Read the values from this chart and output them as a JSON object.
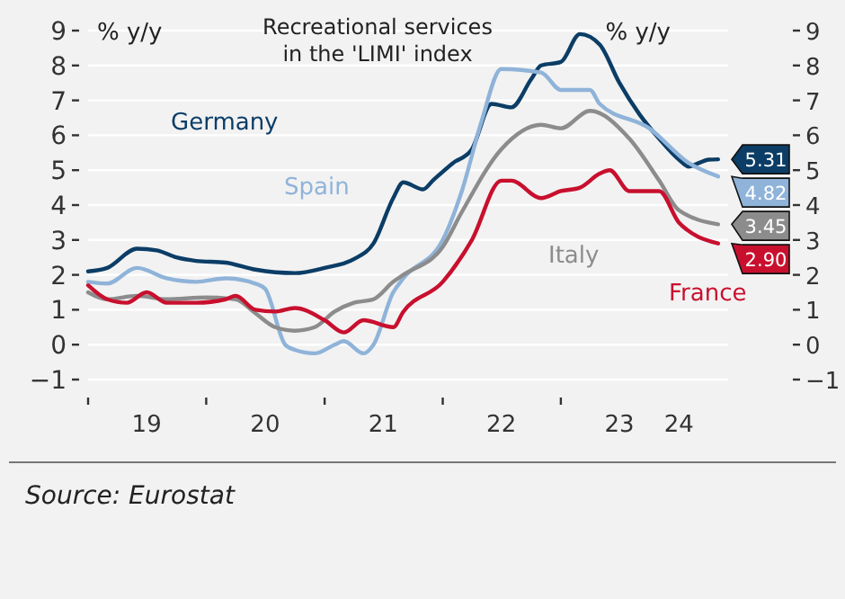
{
  "chart_data": {
    "type": "line",
    "title": "Recreational services\nin the 'LIMI' index",
    "ylabel": "% y/y",
    "y2label": "% y/y",
    "xlim": [
      "2019-01",
      "2024-06"
    ],
    "xticks": [
      {
        "value": "2019-01",
        "label": null
      },
      {
        "value": "2019-07",
        "label": "19"
      },
      {
        "value": "2020-01",
        "label": null
      },
      {
        "value": "2020-07",
        "label": "20"
      },
      {
        "value": "2021-01",
        "label": null
      },
      {
        "value": "2021-07",
        "label": "21"
      },
      {
        "value": "2022-01",
        "label": null
      },
      {
        "value": "2022-07",
        "label": "22"
      },
      {
        "value": "2023-01",
        "label": null
      },
      {
        "value": "2023-07",
        "label": "23"
      },
      {
        "value": "2024-01",
        "label": "24"
      }
    ],
    "ylim": [
      -1,
      9
    ],
    "yticks": [
      -1,
      0,
      1,
      2,
      3,
      4,
      5,
      6,
      7,
      8,
      9
    ],
    "y2lim": [
      -1,
      9
    ],
    "y2ticks": [
      -1,
      0,
      1,
      2,
      3,
      4,
      5,
      6,
      7,
      8,
      9
    ],
    "grid": "y",
    "line_style": "solid",
    "marker": "none",
    "series": [
      {
        "name": "Germany",
        "color": "#0b3d66",
        "x": [
          "2019-01",
          "2019-03",
          "2019-06",
          "2019-08",
          "2019-10",
          "2019-12",
          "2020-03",
          "2020-06",
          "2020-10",
          "2021-01",
          "2021-04",
          "2021-06",
          "2021-08",
          "2021-09",
          "2021-11",
          "2021-12",
          "2022-02",
          "2022-04",
          "2022-06",
          "2022-08",
          "2022-10",
          "2022-11",
          "2023-01",
          "2023-03",
          "2023-05",
          "2023-07",
          "2023-09",
          "2023-11",
          "2024-01",
          "2024-02",
          "2024-03",
          "2024-04",
          "2024-05"
        ],
        "values": [
          2.1,
          2.2,
          2.75,
          2.7,
          2.5,
          2.4,
          2.35,
          2.15,
          2.05,
          2.2,
          2.45,
          2.9,
          4.2,
          4.65,
          4.45,
          4.7,
          5.2,
          5.6,
          6.9,
          6.8,
          7.6,
          8.0,
          8.1,
          8.9,
          8.6,
          7.5,
          6.6,
          5.9,
          5.3,
          5.1,
          5.2,
          5.3,
          5.31
        ],
        "value_labels": [
          null,
          null,
          null,
          null,
          null,
          null,
          null,
          null,
          null,
          null,
          null,
          null,
          null,
          null,
          null,
          null,
          null,
          null,
          null,
          null,
          null,
          null,
          null,
          null,
          null,
          null,
          null,
          null,
          null,
          null,
          null,
          null,
          "5.31"
        ]
      },
      {
        "name": "Spain",
        "color": "#8fb3d9",
        "x": [
          "2019-01",
          "2019-03",
          "2019-06",
          "2019-09",
          "2019-12",
          "2020-03",
          "2020-06",
          "2020-07",
          "2020-09",
          "2020-10",
          "2020-12",
          "2021-02",
          "2021-03",
          "2021-05",
          "2021-06",
          "2021-08",
          "2021-09",
          "2022-01",
          "2022-03",
          "2022-05",
          "2022-07",
          "2022-11",
          "2023-01",
          "2023-04",
          "2023-05",
          "2023-10",
          "2024-02",
          "2024-05"
        ],
        "values": [
          1.8,
          1.75,
          2.2,
          1.9,
          1.8,
          1.9,
          1.75,
          1.6,
          0,
          -0.15,
          -0.25,
          0,
          0.1,
          -0.25,
          0,
          1.5,
          1.9,
          3.0,
          4.4,
          6.4,
          7.9,
          7.8,
          7.3,
          7.3,
          6.9,
          6.2,
          5.2,
          4.82
        ],
        "value_labels": [
          null,
          null,
          null,
          null,
          null,
          null,
          null,
          null,
          null,
          null,
          null,
          null,
          null,
          null,
          null,
          null,
          null,
          null,
          null,
          null,
          null,
          null,
          null,
          null,
          null,
          null,
          null,
          "4.82"
        ]
      },
      {
        "name": "Italy",
        "color": "#8c8c8c",
        "x": [
          "2019-01",
          "2019-03",
          "2019-06",
          "2019-09",
          "2020-01",
          "2020-04",
          "2020-06",
          "2020-08",
          "2020-10",
          "2020-12",
          "2021-02",
          "2021-04",
          "2021-06",
          "2021-08",
          "2021-09",
          "2022-01",
          "2022-03",
          "2022-07",
          "2022-11",
          "2023-01",
          "2023-04",
          "2023-08",
          "2023-11",
          "2024-01",
          "2024-05"
        ],
        "values": [
          1.5,
          1.3,
          1.4,
          1.3,
          1.35,
          1.3,
          0.9,
          0.5,
          0.4,
          0.5,
          0.95,
          1.2,
          1.3,
          1.8,
          2.0,
          2.8,
          3.8,
          5.6,
          6.3,
          6.2,
          6.7,
          5.9,
          4.7,
          3.85,
          3.45
        ],
        "value_labels": [
          null,
          null,
          null,
          null,
          null,
          null,
          null,
          null,
          null,
          null,
          null,
          null,
          null,
          null,
          null,
          null,
          null,
          null,
          null,
          null,
          null,
          null,
          null,
          null,
          "3.45"
        ]
      },
      {
        "name": "France",
        "color": "#c8102e",
        "x": [
          "2019-01",
          "2019-03",
          "2019-05",
          "2019-07",
          "2019-09",
          "2019-12",
          "2020-03",
          "2020-04",
          "2020-06",
          "2020-08",
          "2020-10",
          "2021-01",
          "2021-03",
          "2021-05",
          "2021-08",
          "2021-09",
          "2022-01",
          "2022-04",
          "2022-07",
          "2022-08",
          "2022-11",
          "2023-01",
          "2023-03",
          "2023-05",
          "2023-06",
          "2023-08",
          "2023-11",
          "2024-01",
          "2024-05"
        ],
        "values": [
          1.7,
          1.3,
          1.2,
          1.5,
          1.2,
          1.2,
          1.3,
          1.4,
          1.0,
          0.95,
          1.05,
          0.7,
          0.35,
          0.7,
          0.5,
          0.94,
          1.8,
          3.0,
          4.7,
          4.7,
          4.2,
          4.4,
          4.5,
          4.9,
          5.0,
          4.4,
          4.4,
          3.5,
          2.9
        ],
        "value_labels": [
          null,
          null,
          null,
          null,
          null,
          null,
          null,
          null,
          null,
          null,
          null,
          null,
          null,
          null,
          null,
          null,
          null,
          null,
          null,
          null,
          null,
          null,
          null,
          null,
          null,
          null,
          null,
          null,
          "2.90"
        ]
      }
    ],
    "annotations": [
      "Source: Eurostat"
    ]
  }
}
